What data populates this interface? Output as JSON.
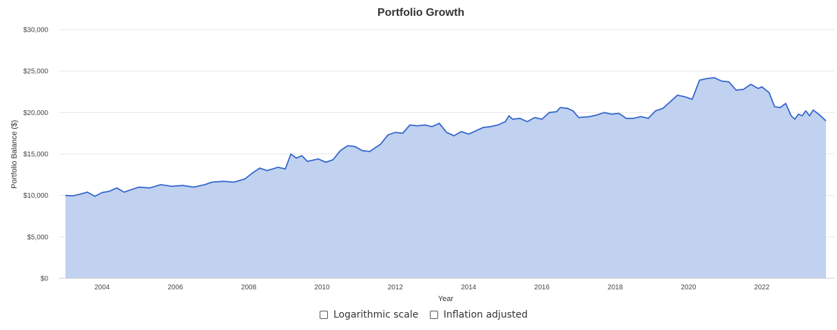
{
  "chart_data": {
    "type": "area",
    "title": "Portfolio Growth",
    "xlabel": "Year",
    "ylabel": "Portfolio Balance ($)",
    "x_range": [
      2003.0,
      2023.75
    ],
    "ylim": [
      0,
      30000
    ],
    "y_ticks": [
      0,
      5000,
      10000,
      15000,
      20000,
      25000,
      30000
    ],
    "y_tick_labels": [
      "$0",
      "$5,000",
      "$10,000",
      "$15,000",
      "$20,000",
      "$25,000",
      "$30,000"
    ],
    "x_ticks": [
      2004,
      2006,
      2008,
      2010,
      2012,
      2014,
      2016,
      2018,
      2020,
      2022
    ],
    "x_tick_labels": [
      "2004",
      "2006",
      "2008",
      "2010",
      "2012",
      "2014",
      "2016",
      "2018",
      "2020",
      "2022"
    ],
    "grid": "horizontal",
    "legend": "none",
    "line_color": "#3366cc",
    "fill_color": "#c1d1f0",
    "series": [
      {
        "points": [
          [
            2003.0,
            10000
          ],
          [
            2003.2,
            9950
          ],
          [
            2003.4,
            10150
          ],
          [
            2003.6,
            10400
          ],
          [
            2003.8,
            9900
          ],
          [
            2004.0,
            10350
          ],
          [
            2004.2,
            10500
          ],
          [
            2004.4,
            10900
          ],
          [
            2004.6,
            10400
          ],
          [
            2004.8,
            10700
          ],
          [
            2005.0,
            11000
          ],
          [
            2005.3,
            10900
          ],
          [
            2005.6,
            11300
          ],
          [
            2005.9,
            11100
          ],
          [
            2006.2,
            11200
          ],
          [
            2006.5,
            11000
          ],
          [
            2006.8,
            11300
          ],
          [
            2007.0,
            11600
          ],
          [
            2007.3,
            11700
          ],
          [
            2007.6,
            11600
          ],
          [
            2007.9,
            12000
          ],
          [
            2008.1,
            12700
          ],
          [
            2008.3,
            13300
          ],
          [
            2008.5,
            13000
          ],
          [
            2008.8,
            13400
          ],
          [
            2009.0,
            13200
          ],
          [
            2009.15,
            15000
          ],
          [
            2009.3,
            14500
          ],
          [
            2009.45,
            14800
          ],
          [
            2009.6,
            14100
          ],
          [
            2009.9,
            14400
          ],
          [
            2010.1,
            14000
          ],
          [
            2010.3,
            14300
          ],
          [
            2010.5,
            15400
          ],
          [
            2010.7,
            16000
          ],
          [
            2010.9,
            15900
          ],
          [
            2011.1,
            15400
          ],
          [
            2011.3,
            15300
          ],
          [
            2011.6,
            16200
          ],
          [
            2011.8,
            17300
          ],
          [
            2012.0,
            17600
          ],
          [
            2012.2,
            17500
          ],
          [
            2012.4,
            18500
          ],
          [
            2012.6,
            18400
          ],
          [
            2012.8,
            18500
          ],
          [
            2013.0,
            18300
          ],
          [
            2013.2,
            18700
          ],
          [
            2013.4,
            17600
          ],
          [
            2013.6,
            17200
          ],
          [
            2013.8,
            17700
          ],
          [
            2014.0,
            17400
          ],
          [
            2014.2,
            17800
          ],
          [
            2014.4,
            18200
          ],
          [
            2014.6,
            18300
          ],
          [
            2014.8,
            18500
          ],
          [
            2015.0,
            18900
          ],
          [
            2015.1,
            19600
          ],
          [
            2015.2,
            19200
          ],
          [
            2015.4,
            19300
          ],
          [
            2015.6,
            18900
          ],
          [
            2015.8,
            19400
          ],
          [
            2016.0,
            19200
          ],
          [
            2016.2,
            20000
          ],
          [
            2016.4,
            20100
          ],
          [
            2016.5,
            20600
          ],
          [
            2016.7,
            20500
          ],
          [
            2016.85,
            20200
          ],
          [
            2017.0,
            19400
          ],
          [
            2017.3,
            19500
          ],
          [
            2017.5,
            19700
          ],
          [
            2017.7,
            20000
          ],
          [
            2017.9,
            19800
          ],
          [
            2018.1,
            19900
          ],
          [
            2018.3,
            19300
          ],
          [
            2018.5,
            19300
          ],
          [
            2018.7,
            19500
          ],
          [
            2018.9,
            19300
          ],
          [
            2019.1,
            20200
          ],
          [
            2019.3,
            20500
          ],
          [
            2019.5,
            21300
          ],
          [
            2019.7,
            22100
          ],
          [
            2019.9,
            21900
          ],
          [
            2020.1,
            21600
          ],
          [
            2020.3,
            23900
          ],
          [
            2020.5,
            24100
          ],
          [
            2020.7,
            24200
          ],
          [
            2020.9,
            23800
          ],
          [
            2021.1,
            23700
          ],
          [
            2021.3,
            22700
          ],
          [
            2021.5,
            22800
          ],
          [
            2021.7,
            23400
          ],
          [
            2021.9,
            22900
          ],
          [
            2022.0,
            23100
          ],
          [
            2022.2,
            22400
          ],
          [
            2022.35,
            20700
          ],
          [
            2022.5,
            20600
          ],
          [
            2022.65,
            21100
          ],
          [
            2022.8,
            19600
          ],
          [
            2022.9,
            19200
          ],
          [
            2023.0,
            19800
          ],
          [
            2023.1,
            19600
          ],
          [
            2023.2,
            20200
          ],
          [
            2023.3,
            19600
          ],
          [
            2023.4,
            20300
          ],
          [
            2023.55,
            19800
          ],
          [
            2023.75,
            19000
          ]
        ]
      }
    ]
  },
  "controls": {
    "log_scale_label": "Logarithmic scale",
    "inflation_label": "Inflation adjusted"
  }
}
